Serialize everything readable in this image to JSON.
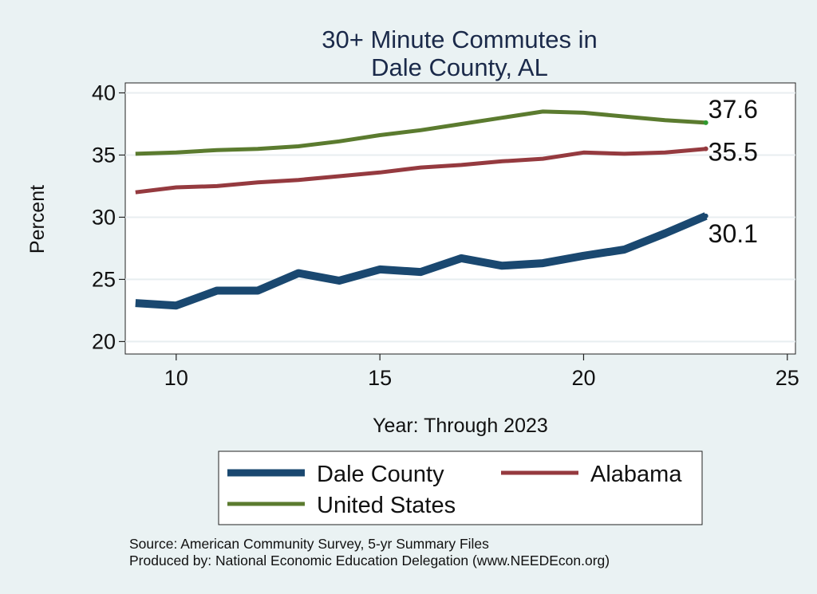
{
  "chart_data": {
    "type": "line",
    "title": [
      "30+ Minute Commutes in",
      "Dale County, AL"
    ],
    "xlabel": "Year: Through 2023",
    "ylabel": "Percent",
    "xlim": [
      8.75,
      25.2
    ],
    "ylim": [
      19,
      40.8
    ],
    "xticks": [
      10,
      15,
      20,
      25
    ],
    "yticks": [
      20,
      25,
      30,
      35,
      40
    ],
    "grid": true,
    "x": [
      9,
      10,
      11,
      12,
      13,
      14,
      15,
      16,
      17,
      18,
      19,
      20,
      21,
      22,
      23
    ],
    "series": [
      {
        "name": "United States",
        "color": "#5b7b2f",
        "end_color": "#2f9a2f",
        "end_label": "37.6",
        "values": [
          35.1,
          35.2,
          35.4,
          35.5,
          35.7,
          36.1,
          36.6,
          37.0,
          37.5,
          38.0,
          38.5,
          38.4,
          38.1,
          37.8,
          37.6
        ]
      },
      {
        "name": "Alabama",
        "color": "#953a3f",
        "end_color": "#953a3f",
        "end_label": "35.5",
        "values": [
          32.0,
          32.4,
          32.5,
          32.8,
          33.0,
          33.3,
          33.6,
          34.0,
          34.2,
          34.5,
          34.7,
          35.2,
          35.1,
          35.2,
          35.5
        ]
      },
      {
        "name": "Dale County",
        "color": "#1a4870",
        "end_color": "#1a4870",
        "end_label": "30.1",
        "values": [
          23.1,
          22.9,
          24.1,
          24.1,
          25.5,
          24.9,
          25.8,
          25.6,
          26.7,
          26.1,
          26.3,
          26.9,
          27.4,
          28.7,
          30.1
        ]
      }
    ],
    "legend": {
      "placement": "bottom",
      "entries": [
        {
          "name": "Dale County",
          "color": "#1a4870"
        },
        {
          "name": "Alabama",
          "color": "#953a3f"
        },
        {
          "name": "United States",
          "color": "#5b7b2f"
        }
      ]
    }
  },
  "source_lines": [
    "Source: American Community Survey, 5-yr Summary Files",
    "Produced by: National Economic Education Delegation (www.NEEDEcon.org)"
  ]
}
